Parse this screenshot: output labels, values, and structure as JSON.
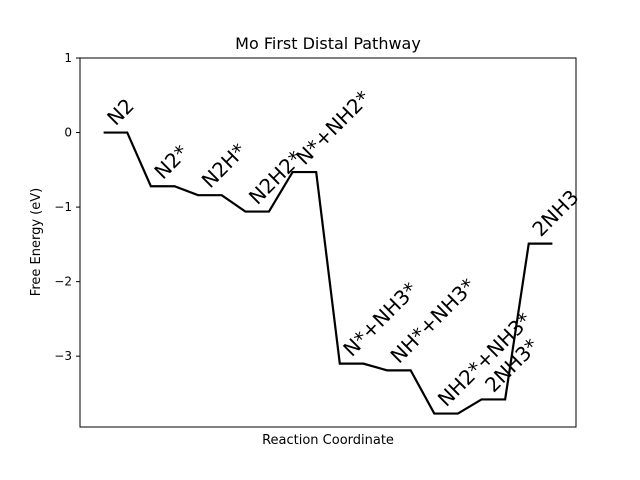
{
  "chart_data": {
    "type": "line",
    "title": "Mo First Distal Pathway",
    "xlabel": "Reaction Coordinate",
    "ylabel": "Free Energy (eV)",
    "ylim": [
      -3.95,
      1.0
    ],
    "xlim": [
      -0.5,
      10.0
    ],
    "yticks": [
      1,
      0,
      -1,
      -2,
      -3
    ],
    "ytick_labels": [
      "1",
      "0",
      "−1",
      "−2",
      "−3"
    ],
    "grid": false,
    "legend": false,
    "line_color": "#000000",
    "steps": [
      {
        "label": "N2",
        "x": [
          0,
          0.5
        ],
        "y": 0.0
      },
      {
        "label": "N2*",
        "x": [
          1,
          1.5
        ],
        "y": -0.72
      },
      {
        "label": "N2H*",
        "x": [
          2,
          2.5
        ],
        "y": -0.84
      },
      {
        "label": "N2H2*",
        "x": [
          3,
          3.5
        ],
        "y": -1.06
      },
      {
        "label": "N*+NH2*",
        "x": [
          4,
          4.5
        ],
        "y": -0.53
      },
      {
        "label": "N*+NH3*",
        "x": [
          5,
          5.5
        ],
        "y": -3.1
      },
      {
        "label": "NH*+NH3*",
        "x": [
          6,
          6.5
        ],
        "y": -3.19
      },
      {
        "label": "NH2*+NH3*",
        "x": [
          7,
          7.5
        ],
        "y": -3.77
      },
      {
        "label": "2NH3*",
        "x": [
          8,
          8.5
        ],
        "y": -3.58
      },
      {
        "label": "2NH3",
        "x": [
          9,
          9.5
        ],
        "y": -1.49
      }
    ]
  }
}
